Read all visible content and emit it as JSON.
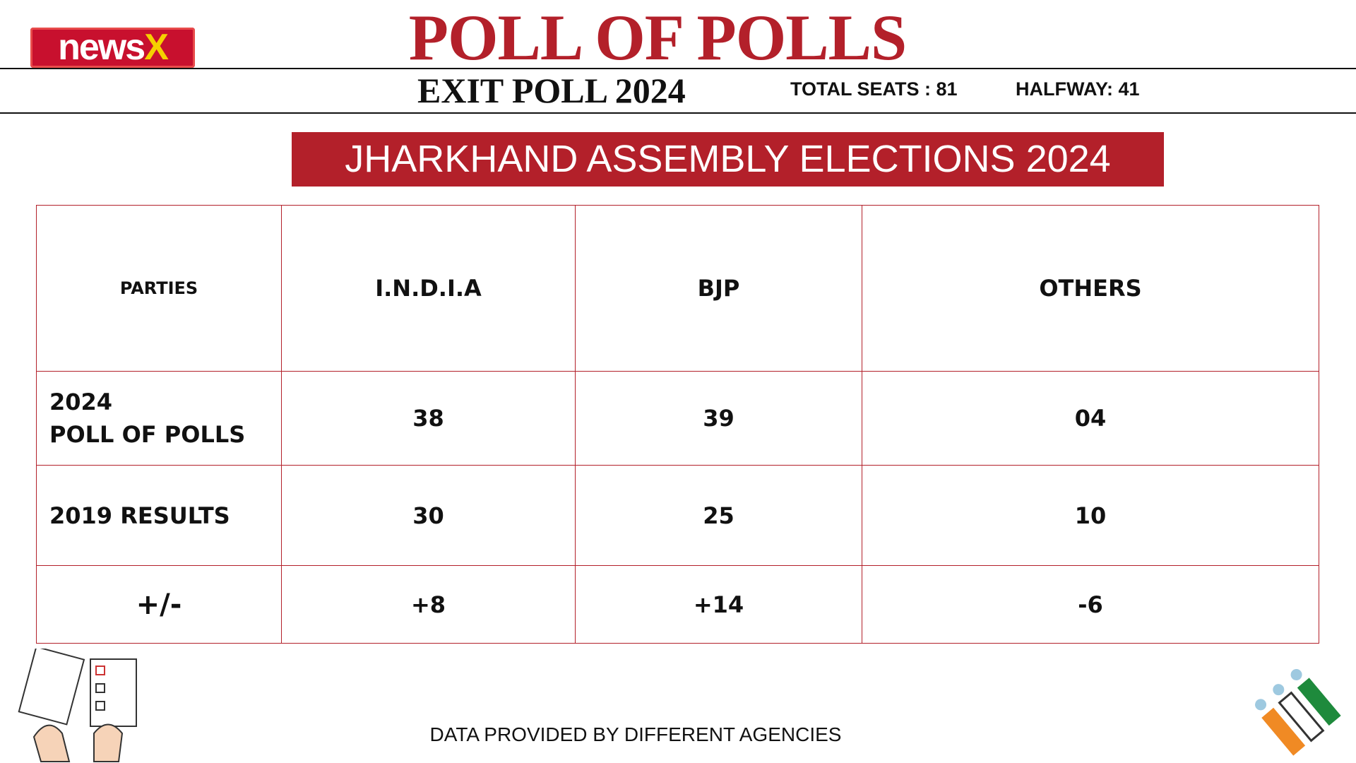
{
  "logo": {
    "text": "news",
    "accent": "X"
  },
  "header": {
    "title": "POLL OF POLLS",
    "subtitle": "EXIT POLL 2024",
    "total_seats": "TOTAL SEATS : 81",
    "halfway": "HALFWAY: 41"
  },
  "banner": "JHARKHAND ASSEMBLY ELECTIONS 2024",
  "table": {
    "header": [
      "PARTIES",
      "I.N.D.I.A",
      "BJP",
      "OTHERS"
    ],
    "rows": [
      {
        "label": [
          "2024",
          "POLL OF POLLS"
        ],
        "cells": [
          "38",
          "39",
          "04"
        ]
      },
      {
        "label": [
          "2019 RESULTS"
        ],
        "cells": [
          "30",
          "25",
          "10"
        ]
      },
      {
        "label": [
          "+/-"
        ],
        "cells": [
          "+8",
          "+14",
          "-6"
        ]
      }
    ]
  },
  "footer": "DATA PROVIDED BY DIFFERENT AGENCIES"
}
